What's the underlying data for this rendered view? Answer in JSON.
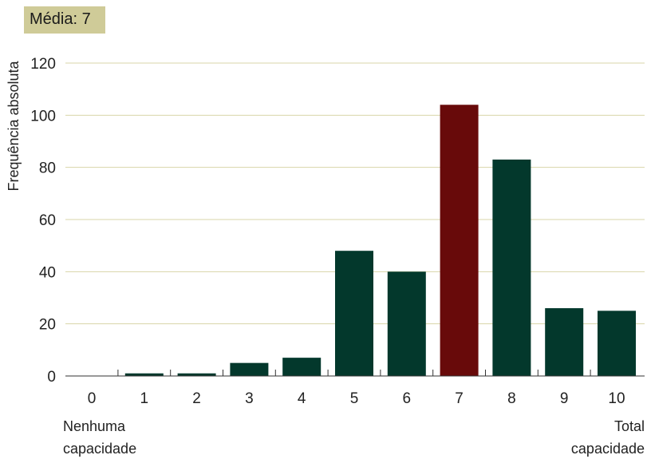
{
  "badge": {
    "text": "Média: 7",
    "color": "#cfcb98"
  },
  "chart_data": {
    "type": "bar",
    "title": "",
    "xlabel": "",
    "ylabel": "Frequência absoluta",
    "categories": [
      "0",
      "1",
      "2",
      "3",
      "4",
      "5",
      "6",
      "7",
      "8",
      "9",
      "10"
    ],
    "values": [
      0,
      1,
      1,
      5,
      7,
      48,
      40,
      104,
      83,
      26,
      25
    ],
    "ylim": [
      0,
      120
    ],
    "yticks": [
      "0",
      "20",
      "40",
      "60",
      "80",
      "100",
      "120"
    ],
    "grid": true,
    "highlight_category": "7",
    "colors": {
      "bar": "#03382c",
      "highlight": "#680a0a",
      "grid": "#d8d5a8"
    },
    "end_labels": {
      "left": [
        "Nenhuma",
        "capacidade"
      ],
      "right": [
        "Total",
        "capacidade"
      ]
    }
  }
}
